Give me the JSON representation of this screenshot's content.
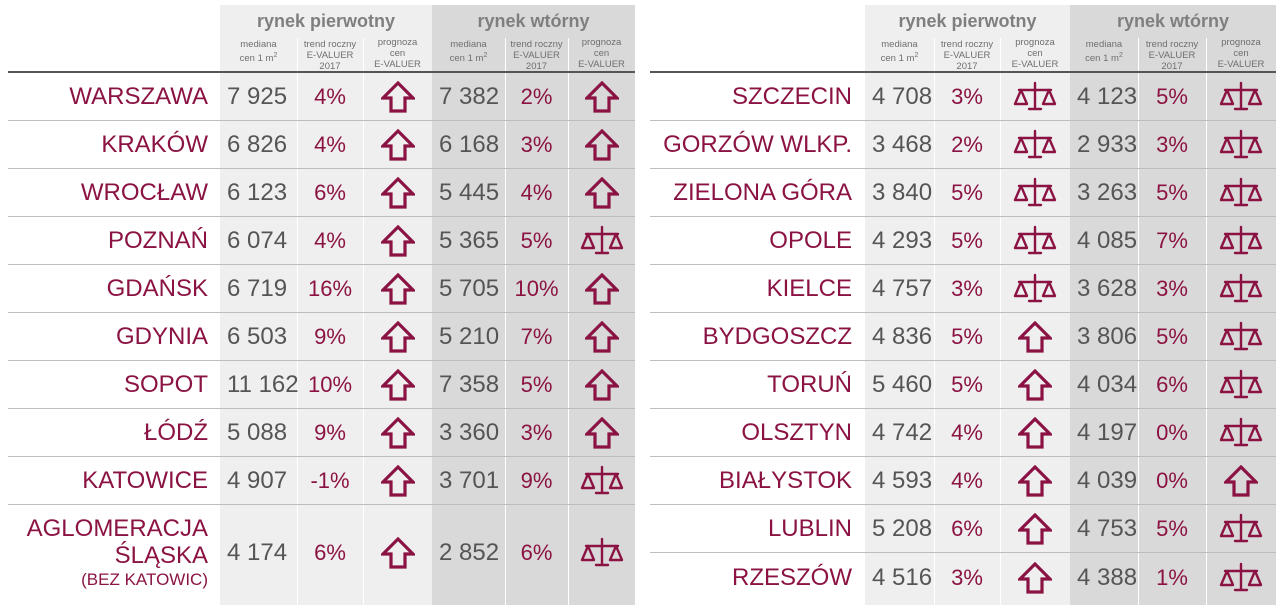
{
  "headers": {
    "primary": "rynek pierwotny",
    "secondary": "rynek wtórny",
    "median_line1": "mediana",
    "median_line2": "cen 1 m",
    "median_sup": "2",
    "trend_line1": "trend roczny",
    "trend_line2": "E-VALUER 2017",
    "forecast_line1": "prognoza",
    "forecast_line2": "cen",
    "forecast_line3": "E-VALUER"
  },
  "colors": {
    "accent": "#8b1343",
    "text": "#555555",
    "primary_bg": "#efefef",
    "secondary_bg": "#d9d9d9"
  },
  "left_table": [
    {
      "city": "WARSZAWA",
      "p_median": "7 925",
      "p_trend": "4%",
      "p_icon": "arrow-up",
      "s_median": "7 382",
      "s_trend": "2%",
      "s_icon": "arrow-up"
    },
    {
      "city": "KRAKÓW",
      "p_median": "6 826",
      "p_trend": "4%",
      "p_icon": "arrow-up",
      "s_median": "6 168",
      "s_trend": "3%",
      "s_icon": "arrow-up"
    },
    {
      "city": "WROCŁAW",
      "p_median": "6 123",
      "p_trend": "6%",
      "p_icon": "arrow-up",
      "s_median": "5 445",
      "s_trend": "4%",
      "s_icon": "arrow-up"
    },
    {
      "city": "POZNAŃ",
      "p_median": "6 074",
      "p_trend": "4%",
      "p_icon": "arrow-up",
      "s_median": "5 365",
      "s_trend": "5%",
      "s_icon": "scales"
    },
    {
      "city": "GDAŃSK",
      "p_median": "6 719",
      "p_trend": "16%",
      "p_icon": "arrow-up",
      "s_median": "5 705",
      "s_trend": "10%",
      "s_icon": "arrow-up"
    },
    {
      "city": "GDYNIA",
      "p_median": "6 503",
      "p_trend": "9%",
      "p_icon": "arrow-up",
      "s_median": "5 210",
      "s_trend": "7%",
      "s_icon": "arrow-up"
    },
    {
      "city": "SOPOT",
      "p_median": "11 162",
      "p_trend": "10%",
      "p_icon": "arrow-up",
      "s_median": "7 358",
      "s_trend": "5%",
      "s_icon": "arrow-up"
    },
    {
      "city": "ŁÓDŹ",
      "p_median": "5 088",
      "p_trend": "9%",
      "p_icon": "arrow-up",
      "s_median": "3 360",
      "s_trend": "3%",
      "s_icon": "arrow-up"
    },
    {
      "city": "KATOWICE",
      "p_median": "4 907",
      "p_trend": "-1%",
      "p_icon": "arrow-up",
      "s_median": "3 701",
      "s_trend": "9%",
      "s_icon": "scales"
    },
    {
      "city": "AGLOMERACJA",
      "city2": "ŚLĄSKA",
      "city3": "(BEZ KATOWIC)",
      "p_median": "4 174",
      "p_trend": "6%",
      "p_icon": "arrow-up",
      "s_median": "2 852",
      "s_trend": "6%",
      "s_icon": "scales"
    }
  ],
  "right_table": [
    {
      "city": "SZCZECIN",
      "p_median": "4 708",
      "p_trend": "3%",
      "p_icon": "scales",
      "s_median": "4 123",
      "s_trend": "5%",
      "s_icon": "scales"
    },
    {
      "city": "GORZÓW WLKP.",
      "p_median": "3 468",
      "p_trend": "2%",
      "p_icon": "scales",
      "s_median": "2 933",
      "s_trend": "3%",
      "s_icon": "scales"
    },
    {
      "city": "ZIELONA GÓRA",
      "p_median": "3 840",
      "p_trend": "5%",
      "p_icon": "scales",
      "s_median": "3 263",
      "s_trend": "5%",
      "s_icon": "scales"
    },
    {
      "city": "OPOLE",
      "p_median": "4 293",
      "p_trend": "5%",
      "p_icon": "scales",
      "s_median": "4 085",
      "s_trend": "7%",
      "s_icon": "scales"
    },
    {
      "city": "KIELCE",
      "p_median": "4 757",
      "p_trend": "3%",
      "p_icon": "scales",
      "s_median": "3 628",
      "s_trend": "3%",
      "s_icon": "scales"
    },
    {
      "city": "BYDGOSZCZ",
      "p_median": "4 836",
      "p_trend": "5%",
      "p_icon": "arrow-up",
      "s_median": "3 806",
      "s_trend": "5%",
      "s_icon": "scales"
    },
    {
      "city": "TORUŃ",
      "p_median": "5 460",
      "p_trend": "5%",
      "p_icon": "arrow-up",
      "s_median": "4 034",
      "s_trend": "6%",
      "s_icon": "scales"
    },
    {
      "city": "OLSZTYN",
      "p_median": "4 742",
      "p_trend": "4%",
      "p_icon": "arrow-up",
      "s_median": "4 197",
      "s_trend": "0%",
      "s_icon": "scales"
    },
    {
      "city": "BIAŁYSTOK",
      "p_median": "4 593",
      "p_trend": "4%",
      "p_icon": "arrow-up",
      "s_median": "4 039",
      "s_trend": "0%",
      "s_icon": "arrow-up"
    },
    {
      "city": "LUBLIN",
      "p_median": "5 208",
      "p_trend": "6%",
      "p_icon": "arrow-up",
      "s_median": "4 753",
      "s_trend": "5%",
      "s_icon": "scales"
    },
    {
      "city": "RZESZÓW",
      "p_median": "4 516",
      "p_trend": "3%",
      "p_icon": "arrow-up",
      "s_median": "4 388",
      "s_trend": "1%",
      "s_icon": "scales"
    }
  ]
}
